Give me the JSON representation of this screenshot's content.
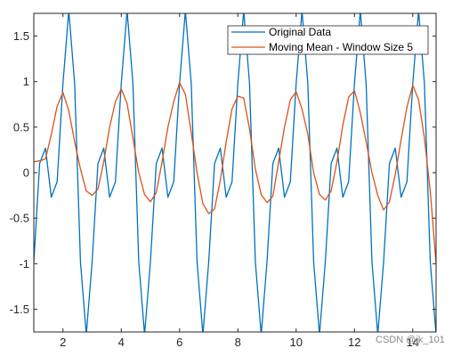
{
  "chart_data": {
    "type": "line",
    "title": "",
    "xlabel": "",
    "ylabel": "",
    "xlim": [
      1,
      14.8
    ],
    "ylim": [
      -1.75,
      1.75
    ],
    "x_ticks": [
      2,
      4,
      6,
      8,
      10,
      12,
      14
    ],
    "y_ticks": [
      -1.5,
      -1,
      -0.5,
      0,
      0.5,
      1,
      1.5
    ],
    "x_tick_labels": [
      "2",
      "4",
      "6",
      "8",
      "10",
      "12",
      "14"
    ],
    "y_tick_labels": [
      "-1.5",
      "-1",
      "-0.5",
      "0",
      "0.5",
      "1",
      "1.5"
    ],
    "grid": false,
    "legend_position": "top-right",
    "x": [
      1.0,
      1.2,
      1.4,
      1.6,
      1.8,
      2.0,
      2.2,
      2.4,
      2.6,
      2.8,
      3.0,
      3.2,
      3.4,
      3.6,
      3.8,
      4.0,
      4.2,
      4.4,
      4.6,
      4.8,
      5.0,
      5.2,
      5.4,
      5.6,
      5.8,
      6.0,
      6.2,
      6.4,
      6.6,
      6.8,
      7.0,
      7.2,
      7.4,
      7.6,
      7.8,
      8.0,
      8.2,
      8.4,
      8.6,
      8.8,
      9.0,
      9.2,
      9.4,
      9.6,
      9.8,
      10.0,
      10.2,
      10.4,
      10.6,
      10.8,
      11.0,
      11.2,
      11.4,
      11.6,
      11.8,
      12.0,
      12.2,
      12.4,
      12.6,
      12.8,
      13.0,
      13.2,
      13.4,
      13.6,
      13.8,
      14.0,
      14.2,
      14.4,
      14.6,
      14.8
    ],
    "series": [
      {
        "name": "Original Data",
        "color": "#0072BD",
        "values": [
          -0.98,
          0.1,
          0.27,
          -0.27,
          -0.1,
          0.98,
          1.78,
          0.98,
          -0.98,
          -1.78,
          -0.98,
          0.1,
          0.27,
          -0.27,
          -0.1,
          0.98,
          1.78,
          0.98,
          -0.98,
          -1.78,
          -0.98,
          0.1,
          0.27,
          -0.27,
          -0.1,
          0.98,
          1.78,
          0.98,
          -0.98,
          -1.78,
          -0.98,
          0.1,
          0.27,
          -0.27,
          -0.1,
          0.98,
          1.78,
          0.98,
          -0.98,
          -1.78,
          -0.98,
          0.1,
          0.27,
          -0.27,
          -0.1,
          0.98,
          1.78,
          0.98,
          -0.98,
          -1.78,
          -0.98,
          0.1,
          0.27,
          -0.27,
          -0.1,
          0.98,
          1.78,
          0.98,
          -0.98,
          -1.78,
          -0.98,
          0.1,
          0.27,
          -0.27,
          -0.1,
          0.98,
          1.78,
          0.98,
          -0.98,
          -1.78
        ]
      },
      {
        "name": "Moving Mean - Window Size 5",
        "color": "#D95319",
        "values": [
          0.12,
          0.13,
          0.15,
          0.42,
          0.73,
          0.88,
          0.68,
          0.34,
          0.04,
          -0.2,
          -0.25,
          -0.18,
          0.12,
          0.5,
          0.78,
          0.92,
          0.76,
          0.38,
          0.0,
          -0.24,
          -0.32,
          -0.22,
          0.12,
          0.5,
          0.78,
          0.99,
          0.86,
          0.44,
          0.0,
          -0.34,
          -0.45,
          -0.4,
          -0.08,
          0.34,
          0.7,
          0.84,
          0.82,
          0.48,
          0.04,
          -0.24,
          -0.33,
          -0.26,
          0.12,
          0.5,
          0.8,
          0.89,
          0.7,
          0.42,
          0.0,
          -0.24,
          -0.3,
          -0.2,
          0.12,
          0.52,
          0.83,
          0.9,
          0.66,
          0.34,
          0.0,
          -0.25,
          -0.41,
          -0.32,
          -0.02,
          0.36,
          0.72,
          0.96,
          0.8,
          0.38,
          -0.2,
          -1.0
        ]
      }
    ]
  },
  "watermark": "CSDN @jk_101"
}
